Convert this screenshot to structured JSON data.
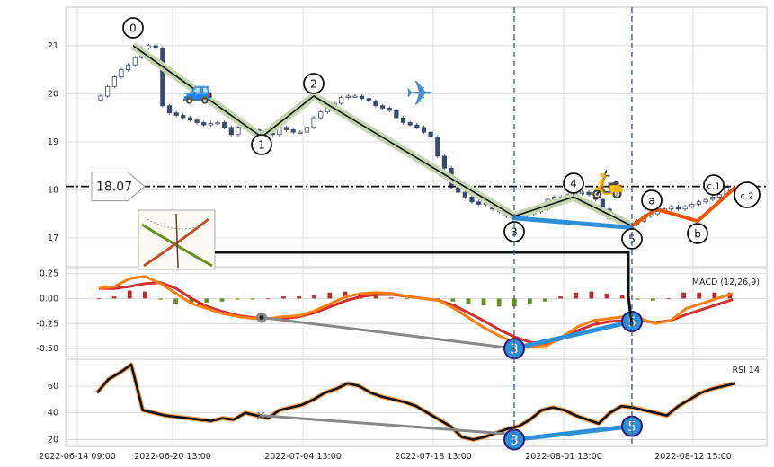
{
  "chart_data": {
    "type": "line",
    "title": "",
    "x_tick_labels": [
      "2022-06-14 09:00",
      "2022-06-20 13:00",
      "2022-07-04 13:00",
      "2022-07-18 13:00",
      "2022-08-01 13:00",
      "2022-08-12 15:00"
    ],
    "price_panel": {
      "type": "candlestick",
      "ylim": [
        16.4,
        21.8
      ],
      "y_ticks": [
        17,
        18,
        19,
        20,
        21
      ],
      "level_line": {
        "value": 18.07,
        "label": "18.07"
      },
      "candles_close": [
        19.95,
        20.15,
        20.35,
        20.5,
        20.6,
        20.75,
        20.95,
        21.0,
        20.95,
        19.75,
        19.6,
        19.55,
        19.5,
        19.45,
        19.4,
        19.35,
        19.38,
        19.4,
        19.3,
        19.15,
        19.3,
        19.3,
        19.25,
        19.2,
        19.18,
        19.15,
        19.3,
        19.25,
        19.2,
        19.2,
        19.3,
        19.5,
        19.62,
        19.7,
        19.8,
        19.92,
        19.95,
        19.95,
        19.9,
        19.85,
        19.75,
        19.7,
        19.65,
        19.5,
        19.4,
        19.35,
        19.3,
        19.2,
        19.1,
        18.7,
        18.45,
        18.05,
        17.95,
        17.85,
        17.75,
        17.7,
        17.72,
        17.6,
        17.55,
        17.45,
        17.4,
        17.45,
        17.5,
        17.55,
        17.6,
        17.8,
        17.85,
        17.85,
        17.9,
        17.92,
        17.95,
        17.9,
        17.8,
        17.6,
        17.4,
        17.35,
        17.3,
        17.28,
        17.35,
        17.45,
        17.5,
        17.55,
        17.6,
        17.65,
        17.6,
        17.65,
        17.7,
        17.75,
        17.8,
        17.85,
        17.9,
        18.05
      ]
    },
    "elliott_wave": {
      "labels": [
        "0",
        "1",
        "2",
        "3",
        "4",
        "5",
        "a",
        "b",
        "c.1",
        "c.2"
      ],
      "impulse_points": [
        21.0,
        19.1,
        19.95,
        17.45,
        17.85,
        17.25
      ],
      "correction_points": [
        17.25,
        17.6,
        17.35,
        18.05
      ]
    },
    "macd_panel": {
      "label": "MACD (12,26,9)",
      "ylim": [
        -0.58,
        0.3
      ],
      "y_ticks": [
        "0.25",
        "0.00",
        "-0.25",
        "-0.50"
      ],
      "y_tick_values": [
        0.25,
        0.0,
        -0.25,
        -0.5
      ],
      "macd": [
        0.1,
        0.12,
        0.2,
        0.22,
        0.15,
        0.05,
        -0.05,
        -0.1,
        -0.15,
        -0.18,
        -0.2,
        -0.2,
        -0.18,
        -0.17,
        -0.12,
        -0.05,
        0.02,
        0.05,
        0.06,
        0.05,
        0.02,
        0.0,
        -0.02,
        -0.1,
        -0.2,
        -0.3,
        -0.38,
        -0.45,
        -0.48,
        -0.47,
        -0.38,
        -0.28,
        -0.22,
        -0.2,
        -0.18,
        -0.2,
        -0.25,
        -0.22,
        -0.1,
        -0.05,
        0.0,
        0.05
      ],
      "signal": [
        0.1,
        0.1,
        0.12,
        0.15,
        0.16,
        0.1,
        0.0,
        -0.08,
        -0.13,
        -0.17,
        -0.19,
        -0.2,
        -0.2,
        -0.18,
        -0.14,
        -0.08,
        -0.02,
        0.02,
        0.04,
        0.04,
        0.02,
        0.0,
        -0.02,
        -0.07,
        -0.15,
        -0.23,
        -0.32,
        -0.39,
        -0.44,
        -0.45,
        -0.4,
        -0.32,
        -0.26,
        -0.23,
        -0.22,
        -0.22,
        -0.24,
        -0.22,
        -0.16,
        -0.11,
        -0.06,
        -0.01
      ],
      "histogram": [
        0.0,
        0.02,
        0.08,
        0.07,
        -0.01,
        -0.05,
        -0.05,
        -0.04,
        -0.03,
        -0.01,
        -0.01,
        0.0,
        0.02,
        0.02,
        0.04,
        0.06,
        0.07,
        0.05,
        0.03,
        0.01,
        0.0,
        0.0,
        0.0,
        -0.03,
        -0.05,
        -0.07,
        -0.08,
        -0.08,
        -0.06,
        -0.03,
        0.02,
        0.06,
        0.07,
        0.05,
        0.03,
        -0.01,
        -0.02,
        0.0,
        0.06,
        0.06,
        0.06,
        0.06
      ]
    },
    "rsi_panel": {
      "label": "RSI 14",
      "ylim": [
        15,
        80
      ],
      "y_ticks": [
        20,
        40,
        60
      ],
      "values": [
        55,
        65,
        70,
        76,
        42,
        40,
        38,
        37,
        36,
        35,
        34,
        36,
        35,
        40,
        38,
        36,
        42,
        44,
        46,
        50,
        55,
        58,
        62,
        60,
        55,
        52,
        50,
        48,
        45,
        40,
        35,
        30,
        22,
        20,
        22,
        25,
        28,
        30,
        35,
        42,
        44,
        42,
        38,
        35,
        32,
        40,
        45,
        44,
        42,
        40,
        38,
        45,
        50,
        55,
        58,
        60,
        62
      ]
    },
    "divergence_labels": [
      "3",
      "5"
    ],
    "colors": {
      "up": "#ffffff",
      "down": "#3d4a6b",
      "macd": "#ff7f0e",
      "signal": "#d03030",
      "hist_up": "#b03030",
      "hist_down": "#6b8e23",
      "rsi": "#111111",
      "wave": "#111111",
      "impulse_hi": "#2f8fd6",
      "correction": "#ee5500",
      "divergence": "#888888"
    },
    "icons": [
      "car-icon",
      "airplane-icon",
      "scooter-icon"
    ]
  }
}
